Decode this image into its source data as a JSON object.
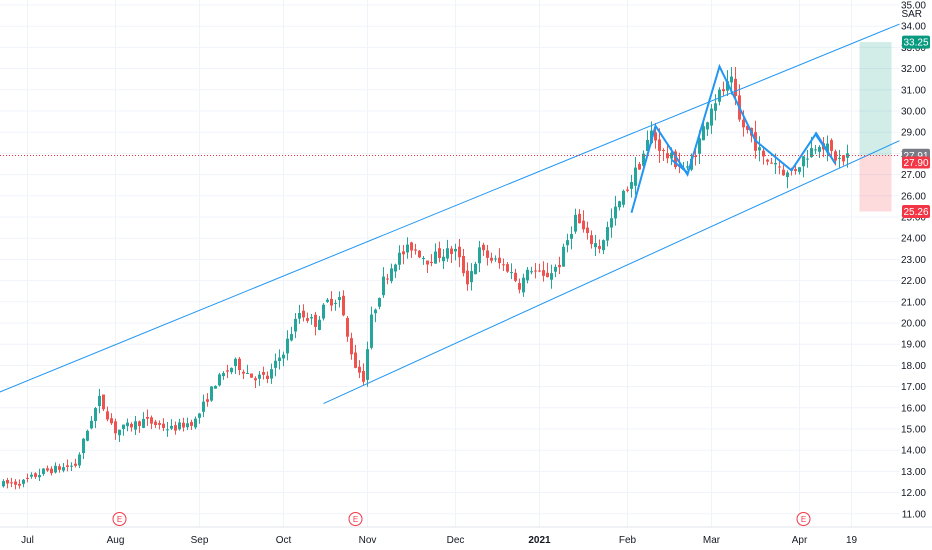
{
  "chart_data": {
    "type": "candlestick",
    "currency": "SAR",
    "colors": {
      "up": "#26a69a",
      "down": "#ef5350",
      "pattern": "#2196f3",
      "channel": "#2196f3",
      "target": "#089981",
      "stop": "#f23645",
      "current": "#f23645",
      "grid": "#f0f3fa"
    },
    "y_axis": {
      "min": 10,
      "max": 35,
      "ticks": [
        "11.00",
        "12.00",
        "13.00",
        "14.00",
        "15.00",
        "16.00",
        "17.00",
        "18.00",
        "19.00",
        "20.00",
        "21.00",
        "22.00",
        "23.00",
        "24.00",
        "25.00",
        "26.00",
        "27.00",
        "28.00",
        "29.00",
        "30.00",
        "31.00",
        "32.00",
        "33.00",
        "34.00",
        "35.00"
      ]
    },
    "x_axis": {
      "labels": [
        {
          "label": "Jul",
          "bar": 6
        },
        {
          "label": "Aug",
          "bar": 28
        },
        {
          "label": "Sep",
          "bar": 49
        },
        {
          "label": "Oct",
          "bar": 70
        },
        {
          "label": "Nov",
          "bar": 91
        },
        {
          "label": "Dec",
          "bar": 113
        },
        {
          "label": "2021",
          "bar": 134
        },
        {
          "label": "Feb",
          "bar": 156
        },
        {
          "label": "Mar",
          "bar": 177
        },
        {
          "label": "Apr",
          "bar": 199
        },
        {
          "label": "19",
          "bar": 212
        }
      ]
    },
    "price_points": [
      [
        0,
        12.4
      ],
      [
        5,
        12.5
      ],
      [
        10,
        13.0
      ],
      [
        18,
        13.3
      ],
      [
        22,
        15.5
      ],
      [
        24,
        16.4
      ],
      [
        28,
        14.9
      ],
      [
        35,
        15.4
      ],
      [
        42,
        15.0
      ],
      [
        48,
        15.4
      ],
      [
        53,
        17.2
      ],
      [
        58,
        18.1
      ],
      [
        62,
        17.5
      ],
      [
        66,
        17.4
      ],
      [
        70,
        18.7
      ],
      [
        74,
        20.5
      ],
      [
        78,
        20.0
      ],
      [
        81,
        21.0
      ],
      [
        84,
        21.2
      ],
      [
        86,
        19.3
      ],
      [
        88,
        18.0
      ],
      [
        90,
        17.4
      ],
      [
        92,
        20.2
      ],
      [
        95,
        22.0
      ],
      [
        98,
        23.0
      ],
      [
        102,
        23.6
      ],
      [
        106,
        23.0
      ],
      [
        110,
        23.3
      ],
      [
        113,
        23.4
      ],
      [
        116,
        22.0
      ],
      [
        119,
        23.4
      ],
      [
        122,
        23.0
      ],
      [
        126,
        22.6
      ],
      [
        129,
        21.8
      ],
      [
        132,
        22.6
      ],
      [
        135,
        22.1
      ],
      [
        139,
        22.8
      ],
      [
        143,
        25.0
      ],
      [
        146,
        24.0
      ],
      [
        149,
        23.6
      ],
      [
        153,
        25.3
      ],
      [
        156,
        26.4
      ],
      [
        159,
        27.5
      ],
      [
        162,
        29.0
      ],
      [
        165,
        28.0
      ],
      [
        168,
        27.6
      ],
      [
        171,
        27.2
      ],
      [
        174,
        28.6
      ],
      [
        177,
        30.3
      ],
      [
        180,
        31.0
      ],
      [
        182,
        31.3
      ],
      [
        184,
        29.5
      ],
      [
        187,
        28.8
      ],
      [
        190,
        27.7
      ],
      [
        193,
        27.6
      ],
      [
        196,
        27.0
      ],
      [
        198,
        27.3
      ],
      [
        201,
        28.0
      ],
      [
        204,
        28.6
      ],
      [
        206,
        28.2
      ],
      [
        208,
        27.8
      ],
      [
        210,
        27.6
      ],
      [
        211,
        27.9
      ]
    ],
    "channel": {
      "upper": [
        [
          -8,
          16.2
        ],
        [
          224,
          34.1
        ]
      ],
      "lower": [
        [
          80,
          16.2
        ],
        [
          224,
          28.6
        ]
      ]
    },
    "pattern_lines": [
      [
        [
          157,
          25.2
        ],
        [
          163,
          29.3
        ],
        [
          171,
          27.0
        ],
        [
          179,
          32.1
        ],
        [
          188,
          28.6
        ],
        [
          197,
          27.2
        ],
        [
          203,
          28.9
        ],
        [
          207,
          27.8
        ]
      ],
      [
        [
          167,
          27.7
        ],
        [
          171,
          27.1
        ]
      ],
      [
        [
          203,
          29.0
        ],
        [
          208,
          27.5
        ]
      ]
    ],
    "current_price": "27.91",
    "entry_price": "27.90",
    "target_price": "33.25",
    "stop_price": "25.26",
    "position_box": {
      "x_start": 214,
      "x_end": 222,
      "top": 33.25,
      "mid": 27.9,
      "bottom": 25.26
    },
    "events": [
      {
        "label": "E",
        "bar": 29
      },
      {
        "label": "E",
        "bar": 88
      },
      {
        "label": "E",
        "bar": 200
      }
    ]
  }
}
